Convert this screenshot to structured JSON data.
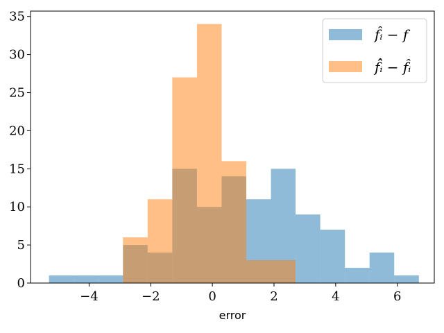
{
  "chart_data": {
    "type": "bar",
    "xlabel": "error",
    "ylabel": "",
    "title": "",
    "xlim": [
      -5.9,
      7.2
    ],
    "ylim": [
      0,
      35.7
    ],
    "xticks": [
      -4,
      -2,
      0,
      2,
      4,
      6
    ],
    "xtick_labels": [
      "−4",
      "−2",
      "0",
      "2",
      "4",
      "6"
    ],
    "yticks": [
      0,
      5,
      10,
      15,
      20,
      25,
      30,
      35
    ],
    "ytick_labels": [
      "0",
      "5",
      "10",
      "15",
      "20",
      "25",
      "30",
      "35"
    ],
    "grid": false,
    "legend_position": "top-right",
    "series": [
      {
        "name": "f̂ᵢ − f",
        "color": "#1f77b4",
        "alpha": 0.5,
        "bin_edges": [
          -5.3,
          -4.5,
          -3.7,
          -2.9,
          -2.1,
          -1.3,
          -0.5,
          0.3,
          1.1,
          1.9,
          2.7,
          3.5,
          4.3,
          5.1,
          5.9,
          6.7
        ],
        "counts": [
          1,
          1,
          1,
          5,
          4,
          15,
          10,
          14,
          11,
          15,
          9,
          7,
          2,
          4,
          1
        ]
      },
      {
        "name": "f̂̂ᵢ − f̂ᵢ",
        "color": "#ff7f0e",
        "alpha": 0.5,
        "bin_edges": [
          -2.9,
          -2.1,
          -1.3,
          -0.5,
          0.3,
          1.1,
          1.9,
          2.7
        ],
        "counts": [
          6,
          11,
          27,
          34,
          16,
          3,
          3
        ]
      }
    ]
  }
}
